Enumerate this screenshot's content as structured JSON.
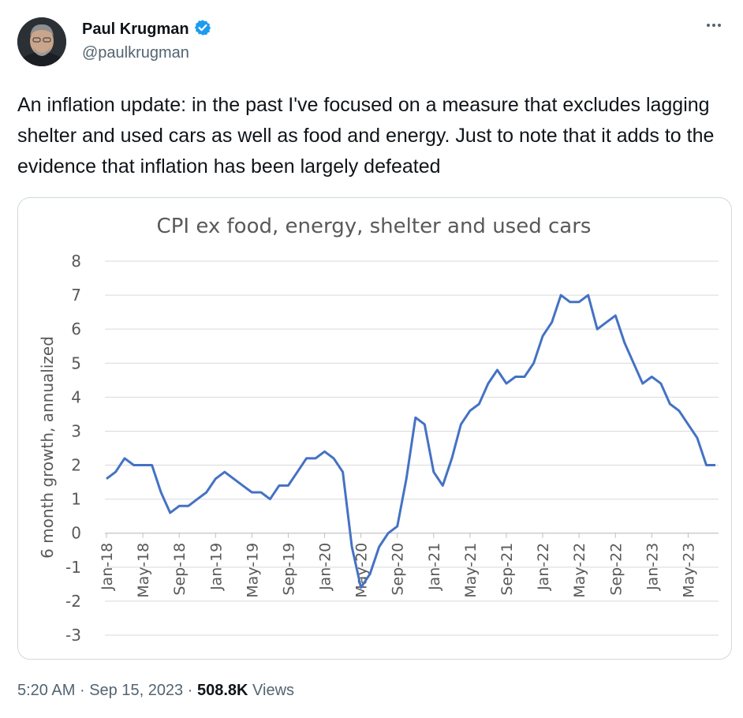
{
  "author": {
    "name": "Paul Krugman",
    "handle": "@paulkrugman",
    "verified": true,
    "accent_color": "#1d9bf0"
  },
  "more_icon": "more-horizontal-icon",
  "tweet": {
    "text": "An inflation update: in the past I've focused on a measure that excludes lagging shelter and used cars as well as food and energy. Just to note that it adds to the evidence that inflation has been largely defeated"
  },
  "footer": {
    "time": "5:20 AM",
    "date": "Sep 15, 2023",
    "separator": "·",
    "views_count": "508.8K",
    "views_label": "Views"
  },
  "chart_data": {
    "type": "line",
    "title": "CPI ex food, energy, shelter and used cars",
    "ylabel": "6 month growth, annualized",
    "xlabel": "",
    "ylim": [
      -3,
      8
    ],
    "yticks": [
      8,
      7,
      6,
      5,
      4,
      3,
      2,
      1,
      0,
      -1,
      -2,
      -3
    ],
    "grid": true,
    "line_color": "#4472c4",
    "x_tick_labels": [
      "Jan-18",
      "May-18",
      "Sep-18",
      "Jan-19",
      "May-19",
      "Sep-19",
      "Jan-20",
      "May-20",
      "Sep-20",
      "Jan-21",
      "May-21",
      "Sep-21",
      "Jan-22",
      "May-22",
      "Sep-22",
      "Jan-23",
      "May-23"
    ],
    "series": [
      {
        "x": [
          "Jan-18",
          "Feb-18",
          "Mar-18",
          "Apr-18",
          "May-18",
          "Jun-18",
          "Jul-18",
          "Aug-18",
          "Sep-18",
          "Oct-18",
          "Nov-18",
          "Dec-18",
          "Jan-19",
          "Feb-19",
          "Mar-19",
          "Apr-19",
          "May-19",
          "Jun-19",
          "Jul-19",
          "Aug-19",
          "Sep-19",
          "Oct-19",
          "Nov-19",
          "Dec-19",
          "Jan-20",
          "Feb-20",
          "Mar-20",
          "Apr-20",
          "May-20",
          "Jun-20",
          "Jul-20",
          "Aug-20",
          "Sep-20",
          "Oct-20",
          "Nov-20",
          "Dec-20",
          "Jan-21",
          "Feb-21",
          "Mar-21",
          "Apr-21",
          "May-21",
          "Jun-21",
          "Jul-21",
          "Aug-21",
          "Sep-21",
          "Oct-21",
          "Nov-21",
          "Dec-21",
          "Jan-22",
          "Feb-22",
          "Mar-22",
          "Apr-22",
          "May-22",
          "Jun-22",
          "Jul-22",
          "Aug-22",
          "Sep-22",
          "Oct-22",
          "Nov-22",
          "Dec-22",
          "Jan-23",
          "Feb-23",
          "Mar-23",
          "Apr-23",
          "May-23",
          "Jun-23",
          "Jul-23",
          "Aug-23"
        ],
        "y": [
          1.6,
          1.8,
          2.2,
          2.0,
          2.0,
          2.0,
          1.2,
          0.6,
          0.8,
          0.8,
          1.0,
          1.2,
          1.6,
          1.8,
          1.6,
          1.4,
          1.2,
          1.2,
          1.0,
          1.4,
          1.4,
          1.8,
          2.2,
          2.2,
          2.4,
          2.2,
          1.8,
          -0.4,
          -1.6,
          -1.2,
          -0.4,
          0.0,
          0.2,
          1.6,
          3.4,
          3.2,
          1.8,
          1.4,
          2.2,
          3.2,
          3.6,
          3.8,
          4.4,
          4.8,
          4.4,
          4.6,
          4.6,
          5.0,
          5.8,
          6.2,
          7.0,
          6.8,
          6.8,
          7.0,
          6.0,
          6.2,
          6.4,
          5.6,
          5.0,
          4.4,
          4.6,
          4.4,
          3.8,
          3.6,
          3.2,
          2.8,
          2.0,
          2.0
        ]
      }
    ]
  }
}
